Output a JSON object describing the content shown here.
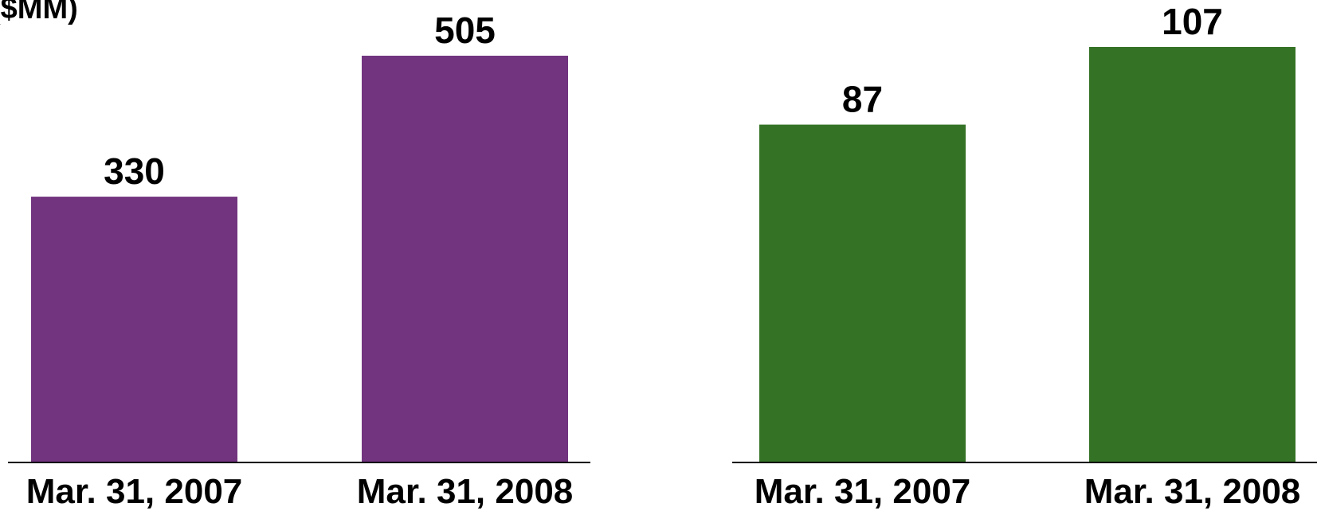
{
  "unit_label": "($MM)",
  "chart_data": [
    {
      "type": "bar",
      "categories": [
        "Mar. 31, 2007",
        "Mar. 31, 2008"
      ],
      "values": [
        330,
        505
      ],
      "data_labels": [
        "330",
        "505"
      ],
      "bar_color": "#72347F",
      "ylim": [
        0,
        505
      ]
    },
    {
      "type": "bar",
      "categories": [
        "Mar. 31, 2007",
        "Mar. 31, 2008"
      ],
      "values": [
        87,
        107
      ],
      "data_labels": [
        "87",
        "107"
      ],
      "bar_color": "#347225",
      "ylim": [
        0,
        107
      ]
    }
  ]
}
